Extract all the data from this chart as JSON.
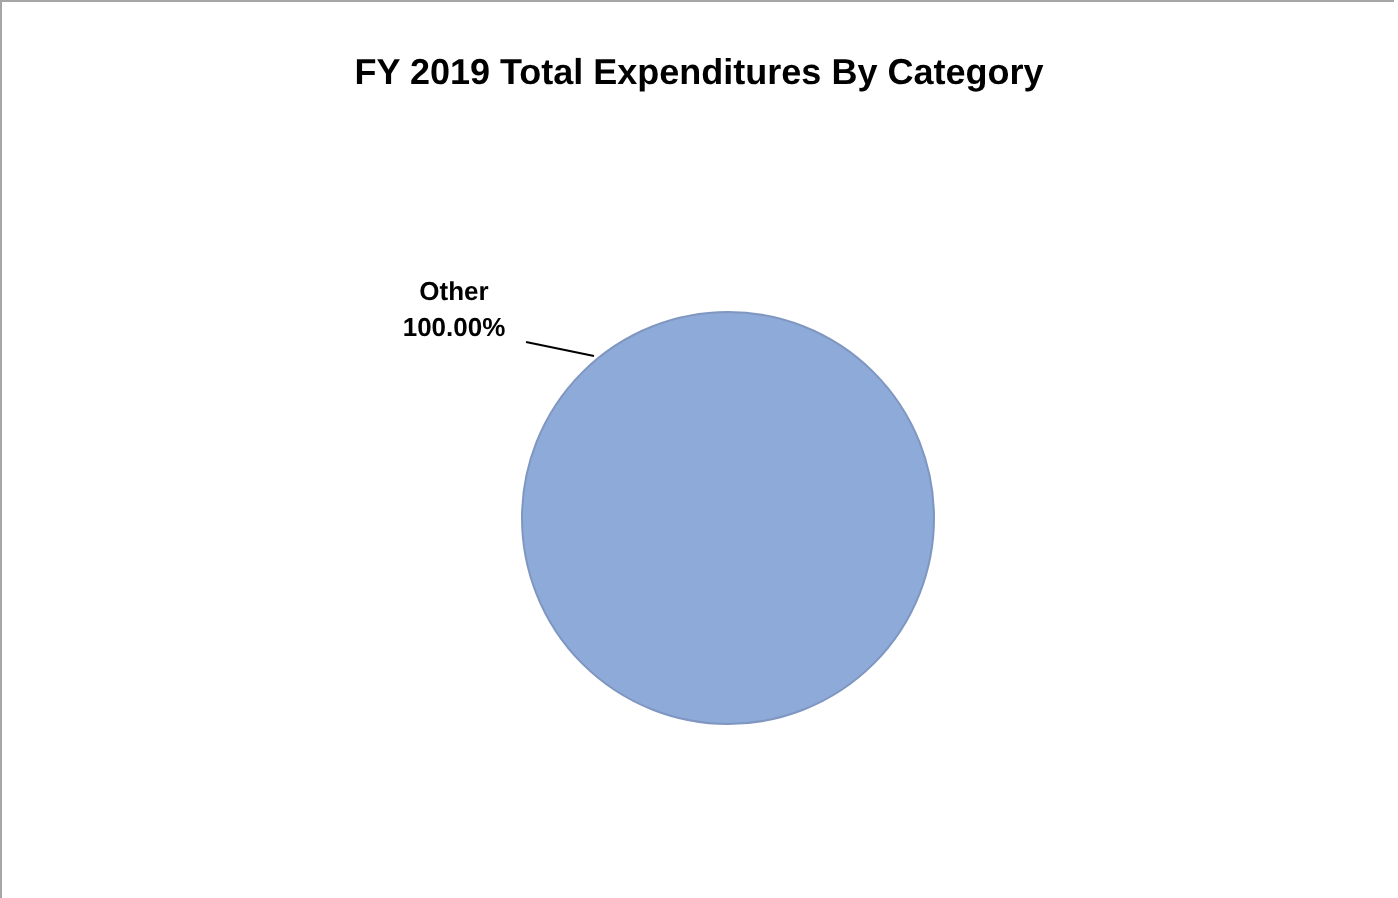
{
  "chart_data": {
    "type": "pie",
    "title": "FY 2019 Total Expenditures By Category",
    "categories": [
      "Other"
    ],
    "values": [
      100
    ],
    "value_labels": [
      "100.00%"
    ],
    "colors": [
      "#8eaad8"
    ]
  }
}
